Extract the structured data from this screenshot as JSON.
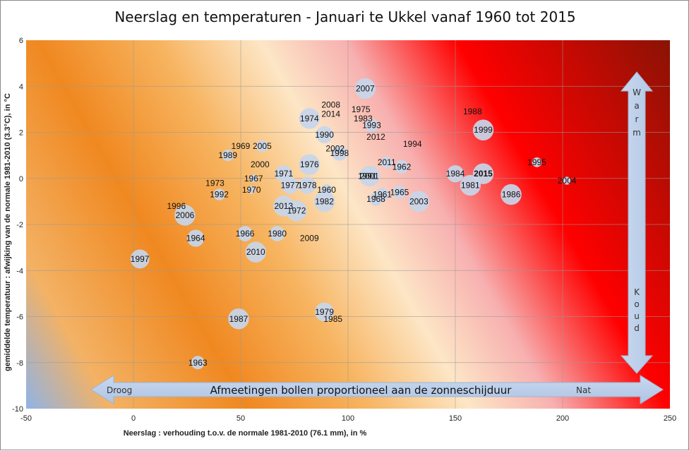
{
  "chart_data": {
    "type": "scatter",
    "title": "Neerslag en temperaturen - Januari te Ukkel vanaf 1960 tot 2015",
    "xlabel": "Neerslag : verhouding t.o.v. de normale 1981-2010 (76.1 mm), in %",
    "ylabel": "gemiddelde temperatuur : afwijking van de normale 1981-2010 (3.3°C), in °C",
    "xlim": [
      -50,
      250
    ],
    "ylim": [
      -10,
      6
    ],
    "xticks": [
      "-50",
      "0",
      "50",
      "100",
      "150",
      "200",
      "250"
    ],
    "yticks": [
      "-10",
      "-8",
      "-6",
      "-4",
      "-2",
      "0",
      "2",
      "4",
      "6"
    ],
    "grid": true,
    "highlight_color": "#e00000",
    "bubble_color": "#c7d6ea",
    "points": [
      {
        "label": "1960",
        "x": 90,
        "y": -0.5,
        "size": 0.4
      },
      {
        "label": "1961",
        "x": 116,
        "y": -0.7,
        "size": 0.5
      },
      {
        "label": "1962",
        "x": 125,
        "y": 0.5,
        "size": 0.5
      },
      {
        "label": "1963",
        "x": 30,
        "y": -8.0,
        "size": 0.5
      },
      {
        "label": "1964",
        "x": 29,
        "y": -2.6,
        "size": 0.7
      },
      {
        "label": "1965",
        "x": 124,
        "y": -0.6,
        "size": 0.5
      },
      {
        "label": "1966",
        "x": 52,
        "y": -2.4,
        "size": 0.6
      },
      {
        "label": "1967",
        "x": 56,
        "y": 0.0,
        "size": 0.2
      },
      {
        "label": "1968",
        "x": 113,
        "y": -0.9,
        "size": 0.5
      },
      {
        "label": "1969",
        "x": 50,
        "y": 1.4,
        "size": 0.0
      },
      {
        "label": "1970",
        "x": 55,
        "y": -0.5,
        "size": 0.2
      },
      {
        "label": "1971",
        "x": 70,
        "y": 0.2,
        "size": 0.7
      },
      {
        "label": "1972",
        "x": 76,
        "y": -1.4,
        "size": 0.9
      },
      {
        "label": "1973",
        "x": 38,
        "y": -0.2,
        "size": 0.0
      },
      {
        "label": "1974",
        "x": 82,
        "y": 2.6,
        "size": 0.9
      },
      {
        "label": "1975",
        "x": 106,
        "y": 3.0,
        "size": 0.0
      },
      {
        "label": "1976",
        "x": 82,
        "y": 0.6,
        "size": 0.9
      },
      {
        "label": "1977",
        "x": 73,
        "y": -0.3,
        "size": 0.7
      },
      {
        "label": "1978",
        "x": 81,
        "y": -0.3,
        "size": 0.7
      },
      {
        "label": "1979",
        "x": 89,
        "y": -5.8,
        "size": 0.8
      },
      {
        "label": "1980",
        "x": 67,
        "y": -2.4,
        "size": 0.6
      },
      {
        "label": "1981",
        "x": 157,
        "y": -0.3,
        "size": 0.9
      },
      {
        "label": "1982",
        "x": 89,
        "y": -1.0,
        "size": 0.9
      },
      {
        "label": "1983",
        "x": 107,
        "y": 2.6,
        "size": 0.0
      },
      {
        "label": "1984",
        "x": 150,
        "y": 0.2,
        "size": 0.7
      },
      {
        "label": "1985",
        "x": 93,
        "y": -6.1,
        "size": 0.0
      },
      {
        "label": "1986",
        "x": 176,
        "y": -0.7,
        "size": 0.9
      },
      {
        "label": "1987",
        "x": 49,
        "y": -6.1,
        "size": 0.9
      },
      {
        "label": "1988",
        "x": 158,
        "y": 2.9,
        "size": 0.0
      },
      {
        "label": "1989",
        "x": 44,
        "y": 1.0,
        "size": 0.4
      },
      {
        "label": "1990",
        "x": 89,
        "y": 1.9,
        "size": 0.7
      },
      {
        "label": "1991",
        "x": 109,
        "y": 0.1,
        "size": 0.3
      },
      {
        "label": "1992",
        "x": 40,
        "y": -0.7,
        "size": 0.4
      },
      {
        "label": "1993",
        "x": 111,
        "y": 2.3,
        "size": 0.5
      },
      {
        "label": "1994",
        "x": 130,
        "y": 1.5,
        "size": 0.0
      },
      {
        "label": "1995",
        "x": 188,
        "y": 0.7,
        "size": 0.3
      },
      {
        "label": "1996",
        "x": 20,
        "y": -1.2,
        "size": 0.0
      },
      {
        "label": "1997",
        "x": 3,
        "y": -3.5,
        "size": 0.8
      },
      {
        "label": "1998",
        "x": 96,
        "y": 1.1,
        "size": 0.6
      },
      {
        "label": "1999",
        "x": 163,
        "y": 2.1,
        "size": 0.9
      },
      {
        "label": "2000",
        "x": 59,
        "y": 0.6,
        "size": 0.0
      },
      {
        "label": "2001",
        "x": 110,
        "y": 0.1,
        "size": 0.9
      },
      {
        "label": "2002",
        "x": 94,
        "y": 1.3,
        "size": 0.0
      },
      {
        "label": "2003",
        "x": 133,
        "y": -1.0,
        "size": 0.9
      },
      {
        "label": "2004",
        "x": 202,
        "y": -0.1,
        "size": 0.2
      },
      {
        "label": "2005",
        "x": 60,
        "y": 1.4,
        "size": 0.4
      },
      {
        "label": "2006",
        "x": 24,
        "y": -1.6,
        "size": 0.9
      },
      {
        "label": "2007",
        "x": 108,
        "y": 3.9,
        "size": 0.9
      },
      {
        "label": "2008",
        "x": 92,
        "y": 3.2,
        "size": 0.0
      },
      {
        "label": "2009",
        "x": 82,
        "y": -2.6,
        "size": 0.0
      },
      {
        "label": "2010",
        "x": 57,
        "y": -3.2,
        "size": 0.9
      },
      {
        "label": "2011",
        "x": 118,
        "y": 0.7,
        "size": 0.4
      },
      {
        "label": "2012",
        "x": 113,
        "y": 1.8,
        "size": 0.0
      },
      {
        "label": "2013",
        "x": 70,
        "y": -1.2,
        "size": 0.9
      },
      {
        "label": "2014",
        "x": 92,
        "y": 2.8,
        "size": 0.0
      },
      {
        "label": "2015",
        "x": 163,
        "y": 0.2,
        "size": 0.9,
        "highlight": true
      }
    ],
    "annotations": {
      "warm": [
        "W",
        "a",
        "r",
        "m"
      ],
      "koud": [
        "K",
        "o",
        "u",
        "d"
      ],
      "droog": "Droog",
      "nat": "Nat",
      "banner": "Afmeetingen bollen proportioneel aan de zonneschijduur"
    }
  }
}
